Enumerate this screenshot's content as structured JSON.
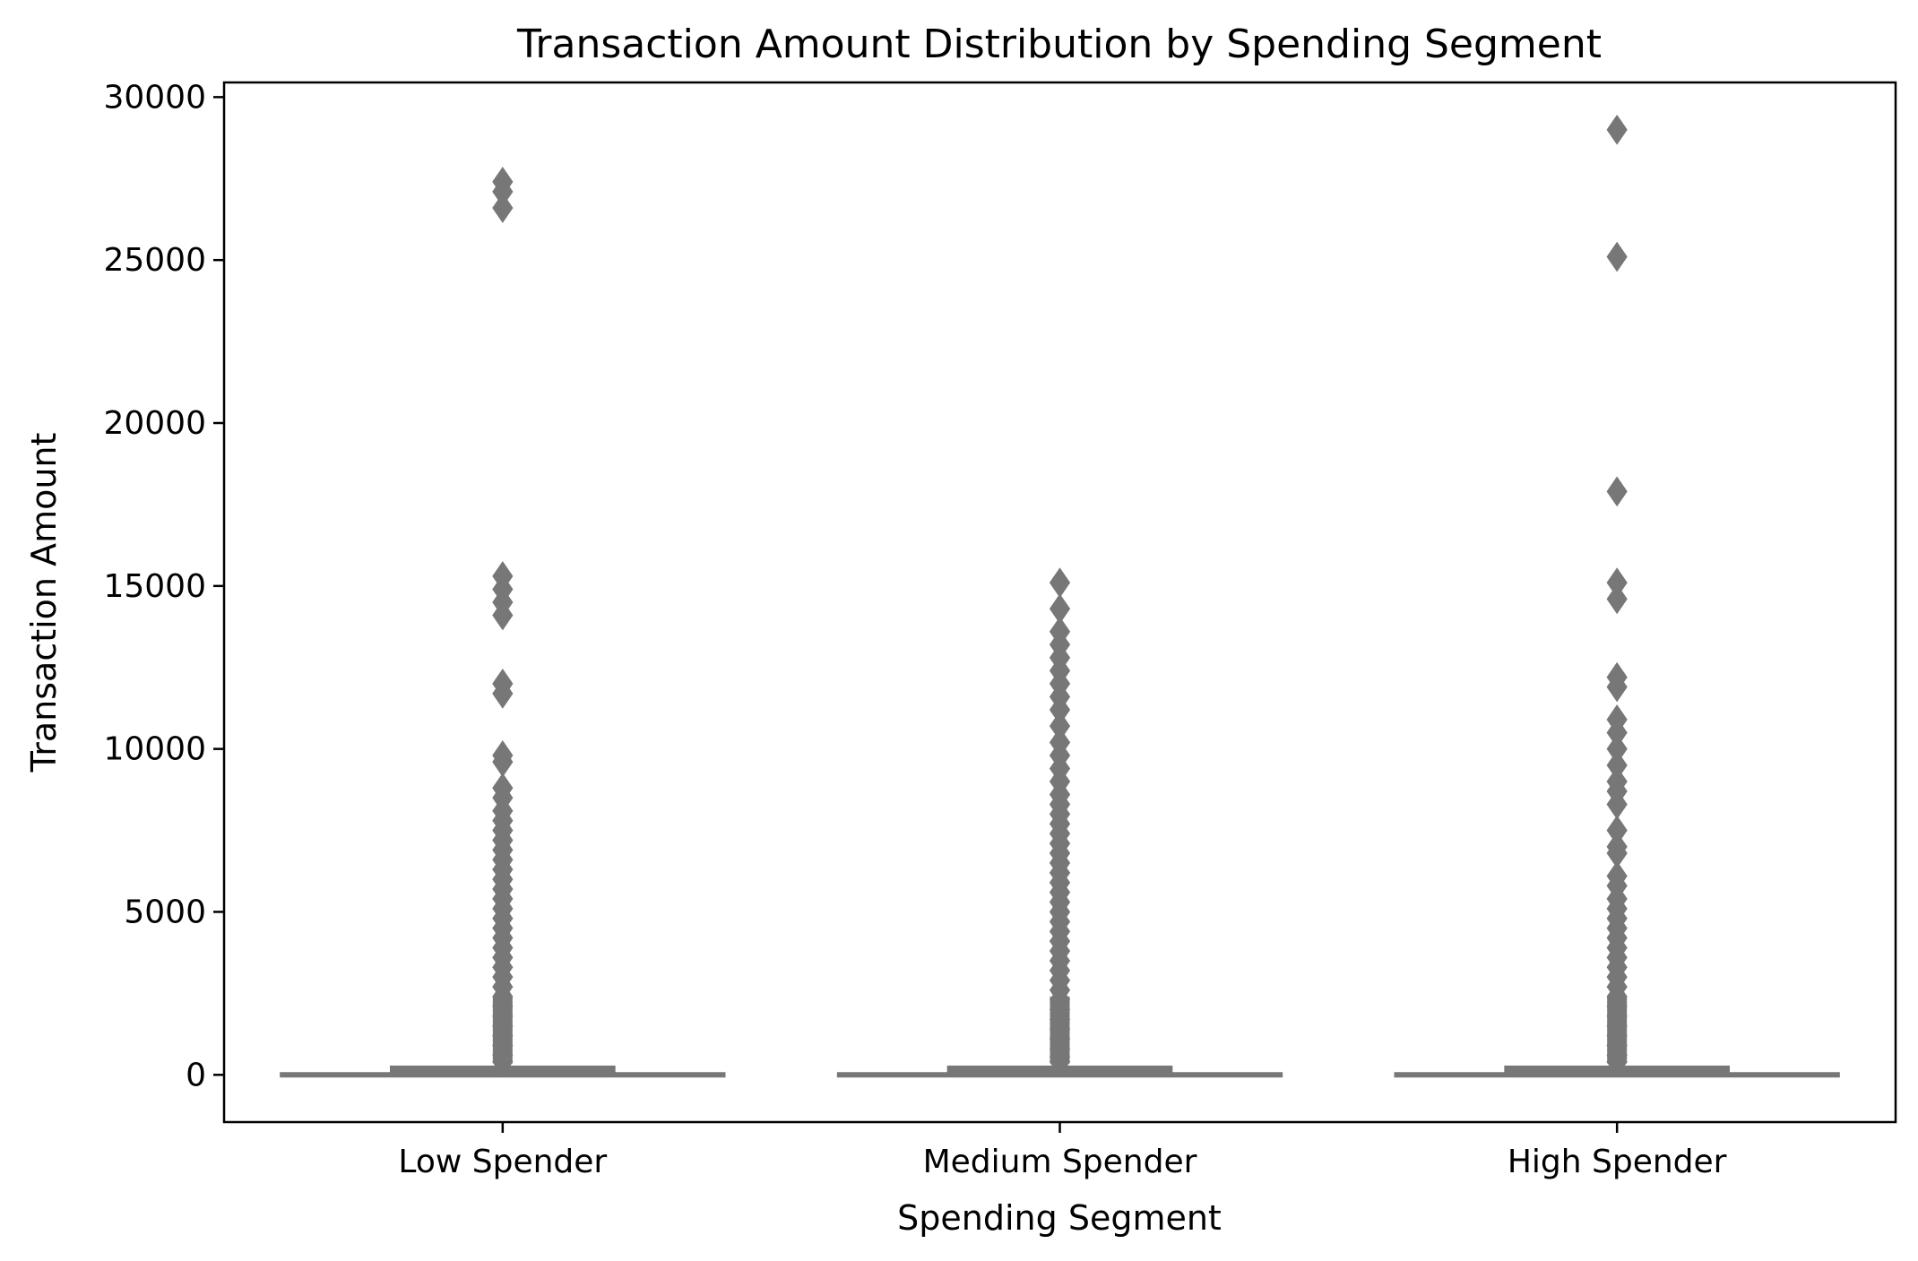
{
  "chart_data": {
    "type": "box",
    "title": "Transaction Amount Distribution by Spending Segment",
    "xlabel": "Spending Segment",
    "ylabel": "Transaction Amount",
    "ylim": [
      -1450,
      30450
    ],
    "yticks": [
      0,
      5000,
      10000,
      15000,
      20000,
      25000,
      30000
    ],
    "grid": false,
    "legend": "none",
    "colors": {
      "box": "#777777",
      "frame": "#000000",
      "background": "#ffffff"
    },
    "categories": [
      "Low Spender",
      "Medium Spender",
      "High Spender"
    ],
    "series": [
      {
        "category": "Low Spender",
        "whisker_low": 1,
        "q1": 30,
        "median": 65,
        "q3": 160,
        "whisker_high": 350,
        "outliers": [
          27400,
          27100,
          26600,
          15300,
          14900,
          14500,
          14100,
          12000,
          11700,
          9800,
          9600,
          8800,
          8500,
          8100,
          7800,
          7500,
          7200,
          6900,
          6600,
          6300,
          6000,
          5700,
          5400,
          5100,
          4800,
          4500,
          4200,
          3900,
          3600,
          3300,
          3000,
          2700,
          2400,
          2100,
          1800,
          1500,
          1200,
          900,
          600,
          400
        ]
      },
      {
        "category": "Medium Spender",
        "whisker_low": 1,
        "q1": 30,
        "median": 65,
        "q3": 160,
        "whisker_high": 350,
        "outliers": [
          15100,
          14300,
          13600,
          13200,
          12800,
          12400,
          12000,
          11600,
          11200,
          10700,
          10200,
          9800,
          9400,
          9000,
          8600,
          8300,
          8000,
          7700,
          7400,
          7100,
          6800,
          6500,
          6200,
          5900,
          5600,
          5300,
          5000,
          4700,
          4400,
          4100,
          3800,
          3500,
          3200,
          2900,
          2600,
          2300,
          2000,
          1700,
          1400,
          1100,
          800,
          550,
          400
        ]
      },
      {
        "category": "High Spender",
        "whisker_low": 1,
        "q1": 30,
        "median": 65,
        "q3": 160,
        "whisker_high": 350,
        "outliers": [
          29000,
          25100,
          17900,
          15100,
          14600,
          12200,
          11900,
          10900,
          10500,
          10000,
          9500,
          9000,
          8700,
          8300,
          7500,
          7000,
          6800,
          6100,
          5800,
          5400,
          5100,
          4800,
          4500,
          4200,
          3900,
          3600,
          3300,
          3000,
          2700,
          2400,
          2100,
          1800,
          1500,
          1200,
          900,
          600,
          400
        ]
      }
    ]
  }
}
